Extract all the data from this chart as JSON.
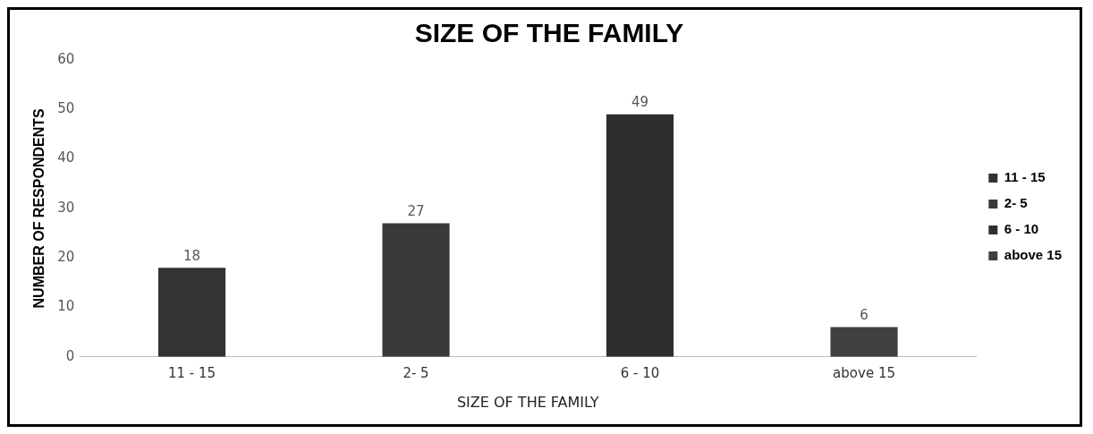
{
  "chart_data": {
    "type": "bar",
    "title": "SIZE OF THE FAMILY",
    "xlabel": "SIZE OF THE FAMILY",
    "ylabel": "NUMBER OF RESPONDENTS",
    "categories": [
      "11 - 15",
      "2- 5",
      "6 - 10",
      "above 15"
    ],
    "series": [
      {
        "name": "11 - 15",
        "color": "#333333",
        "values": [
          18,
          null,
          null,
          null
        ]
      },
      {
        "name": "2- 5",
        "color": "#3a3a3a",
        "values": [
          null,
          27,
          null,
          null
        ]
      },
      {
        "name": "6 - 10",
        "color": "#2e2e2e",
        "values": [
          null,
          null,
          49,
          null
        ]
      },
      {
        "name": "above 15",
        "color": "#404040",
        "values": [
          null,
          null,
          null,
          6
        ]
      }
    ],
    "ylim": [
      0,
      60
    ],
    "yticks": [
      0,
      10,
      20,
      30,
      40,
      50,
      60
    ],
    "grid": false,
    "legend": "right",
    "data_labels": true
  }
}
